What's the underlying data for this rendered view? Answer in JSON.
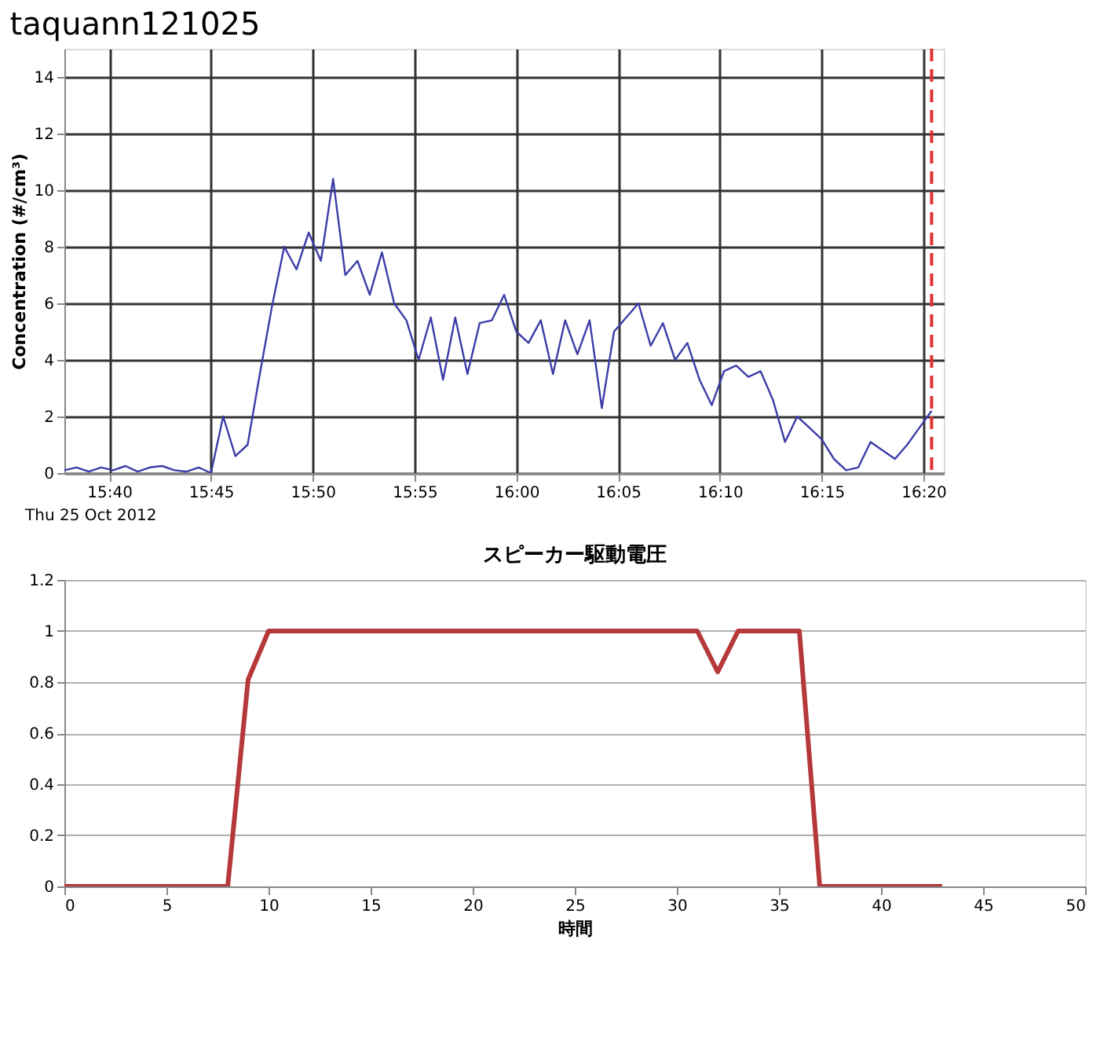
{
  "chart_data": [
    {
      "type": "line",
      "title": "taquann121025",
      "ylabel": "Concentration (#/cm³)",
      "color": "#3c3ca8",
      "grid": true,
      "x": [
        15.63,
        15.64,
        15.65,
        15.66,
        15.67,
        15.68,
        15.69,
        15.7,
        15.71,
        15.72,
        15.73,
        15.74,
        15.75,
        15.76,
        15.77,
        15.78,
        15.79,
        15.8,
        15.81,
        15.82,
        15.83,
        15.84,
        15.85,
        15.86,
        15.87,
        15.88,
        15.89,
        15.9,
        15.91,
        15.92,
        15.93,
        15.94,
        15.95,
        15.96,
        15.97,
        15.98,
        15.99,
        16.0,
        16.01,
        16.02,
        16.03,
        16.04,
        16.05,
        16.06,
        16.07,
        16.08,
        16.09,
        16.1,
        16.11,
        16.12,
        16.13,
        16.14,
        16.15,
        16.16,
        16.17,
        16.18,
        16.19,
        16.2,
        16.21,
        16.22,
        16.23,
        16.24,
        16.25,
        16.26,
        16.27,
        16.28,
        16.29,
        16.3,
        16.31,
        16.32,
        16.33,
        16.34
      ],
      "values": [
        0.1,
        0.2,
        0.05,
        0.2,
        0.1,
        0.25,
        0.05,
        0.2,
        0.25,
        0.1,
        0.05,
        0.2,
        0.0,
        2.0,
        0.6,
        1.0,
        3.5,
        5.9,
        8.0,
        7.2,
        8.5,
        7.5,
        10.4,
        7.0,
        7.5,
        6.3,
        7.8,
        6.0,
        5.4,
        4.0,
        5.5,
        3.3,
        5.5,
        3.5,
        5.3,
        5.4,
        6.3,
        5.0,
        4.6,
        5.4,
        3.5,
        5.4,
        4.2,
        5.4,
        2.3,
        5.0,
        5.5,
        6.0,
        4.5,
        5.3,
        4.0,
        4.6,
        3.3,
        2.4,
        3.6,
        3.8,
        3.4,
        3.6,
        2.6,
        1.1,
        2.0,
        1.6,
        1.2,
        0.5,
        0.1,
        0.2,
        1.1,
        0.8,
        0.5,
        1.0,
        1.6,
        2.2
      ],
      "xlim": [
        15.63,
        16.35
      ],
      "xticks": [
        {
          "value": 15.6667,
          "label": "15:40"
        },
        {
          "value": 15.75,
          "label": "15:45"
        },
        {
          "value": 15.8333,
          "label": "15:50"
        },
        {
          "value": 15.9167,
          "label": "15:55"
        },
        {
          "value": 16.0,
          "label": "16:00"
        },
        {
          "value": 16.0833,
          "label": "16:05"
        },
        {
          "value": 16.1667,
          "label": "16:10"
        },
        {
          "value": 16.25,
          "label": "16:15"
        },
        {
          "value": 16.3333,
          "label": "16:20"
        }
      ],
      "ylim": [
        0,
        15
      ],
      "yticks": [
        0,
        2,
        4,
        6,
        8,
        10,
        12,
        14
      ],
      "ref_lines": [
        {
          "axis": "x",
          "value": 16.34,
          "color": "#e03030",
          "line_style": "dashed"
        }
      ],
      "annotations": [
        "Thu 25 Oct 2012"
      ]
    },
    {
      "type": "line",
      "title": "スピーカー駆動電圧",
      "xlabel": "時間",
      "color": "#b5383a",
      "grid": "y",
      "x": [
        0,
        1,
        2,
        3,
        4,
        5,
        6,
        7,
        8,
        9,
        10,
        11,
        12,
        13,
        14,
        15,
        16,
        17,
        18,
        19,
        20,
        21,
        22,
        23,
        24,
        25,
        26,
        27,
        28,
        29,
        30,
        31,
        32,
        33,
        34,
        35,
        36,
        37,
        38,
        39,
        40,
        41,
        42,
        43
      ],
      "values": [
        0,
        0,
        0,
        0,
        0,
        0,
        0,
        0,
        0,
        0.81,
        1,
        1,
        1,
        1,
        1,
        1,
        1,
        1,
        1,
        1,
        1,
        1,
        1,
        1,
        1,
        1,
        1,
        1,
        1,
        1,
        1,
        1,
        0.84,
        1,
        1,
        1,
        1,
        0,
        0,
        0,
        0,
        0,
        0,
        0
      ],
      "xlim": [
        0,
        50
      ],
      "xticks": [
        0,
        5,
        10,
        15,
        20,
        25,
        30,
        35,
        40,
        45,
        50
      ],
      "ylim": [
        0,
        1.2
      ],
      "yticks": [
        0,
        0.2,
        0.4,
        0.6,
        0.8,
        1,
        1.2
      ]
    }
  ]
}
